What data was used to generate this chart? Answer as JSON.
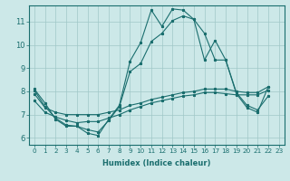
{
  "xlabel": "Humidex (Indice chaleur)",
  "bg_color": "#cce8e8",
  "line_color": "#1a6e6e",
  "grid_color": "#a0c8c8",
  "xlim": [
    -0.5,
    23.5
  ],
  "ylim": [
    5.7,
    11.7
  ],
  "yticks": [
    6,
    7,
    8,
    9,
    10,
    11
  ],
  "xticks": [
    0,
    1,
    2,
    3,
    4,
    5,
    6,
    7,
    8,
    9,
    10,
    11,
    12,
    13,
    14,
    15,
    16,
    17,
    18,
    19,
    20,
    21,
    22,
    23
  ],
  "line1_y": [
    8.1,
    7.5,
    6.8,
    6.5,
    6.5,
    6.2,
    6.1,
    6.8,
    7.4,
    9.3,
    10.1,
    11.5,
    10.8,
    11.55,
    11.5,
    11.1,
    9.35,
    10.2,
    9.35,
    7.9,
    7.3,
    7.1,
    8.2,
    null
  ],
  "line2_y": [
    8.05,
    7.35,
    6.85,
    6.55,
    6.5,
    6.35,
    6.25,
    6.75,
    7.35,
    8.85,
    9.2,
    10.15,
    10.5,
    11.05,
    11.25,
    11.1,
    10.5,
    9.35,
    9.35,
    7.95,
    7.4,
    7.2,
    7.8,
    null
  ],
  "line3_y": [
    7.9,
    7.3,
    7.1,
    7.0,
    7.0,
    7.0,
    7.0,
    7.1,
    7.2,
    7.4,
    7.5,
    7.65,
    7.75,
    7.85,
    7.95,
    8.0,
    8.1,
    8.1,
    8.1,
    8.0,
    7.95,
    7.95,
    8.2,
    null
  ],
  "line4_y": [
    7.6,
    7.1,
    6.9,
    6.75,
    6.65,
    6.7,
    6.7,
    6.85,
    7.0,
    7.2,
    7.35,
    7.5,
    7.6,
    7.7,
    7.8,
    7.85,
    7.95,
    7.95,
    7.9,
    7.85,
    7.85,
    7.85,
    8.05,
    null
  ],
  "xlabel_fontsize": 6.0,
  "tick_fontsize": 5.2,
  "ytick_fontsize": 6.0
}
